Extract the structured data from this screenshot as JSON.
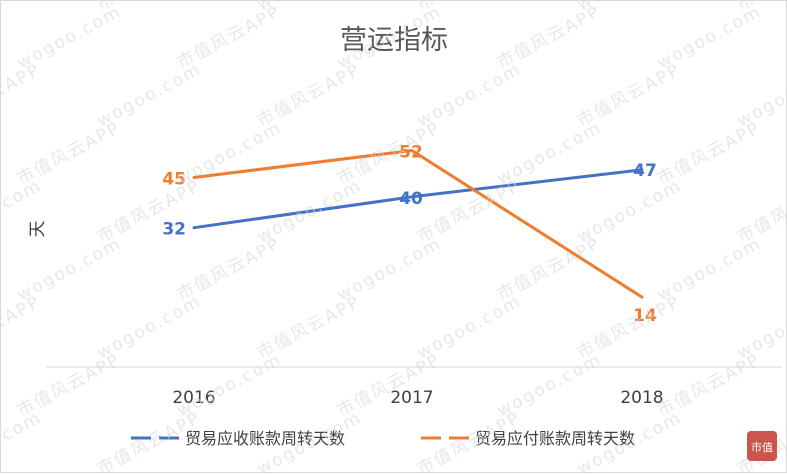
{
  "chart_data": {
    "type": "line",
    "title": "营运指标",
    "ylabel": "天",
    "xlabel": "",
    "categories": [
      "2016",
      "2017",
      "2018"
    ],
    "ylim": [
      0,
      60
    ],
    "grid": false,
    "legend_position": "bottom",
    "series": [
      {
        "name": "贸易应收账款周转天数",
        "values": [
          32,
          40,
          47
        ],
        "color": "#4472c4"
      },
      {
        "name": "贸易应付账款周转天数",
        "values": [
          45,
          52,
          14
        ],
        "color": "#ed7d31"
      }
    ]
  },
  "watermark": {
    "texts": [
      "wogoo.com",
      "市值风云APP"
    ],
    "logo_text": "市值"
  },
  "colors": {
    "title": "#595959",
    "axis_text": "#404040",
    "axis_line": "#d9d9d9"
  }
}
